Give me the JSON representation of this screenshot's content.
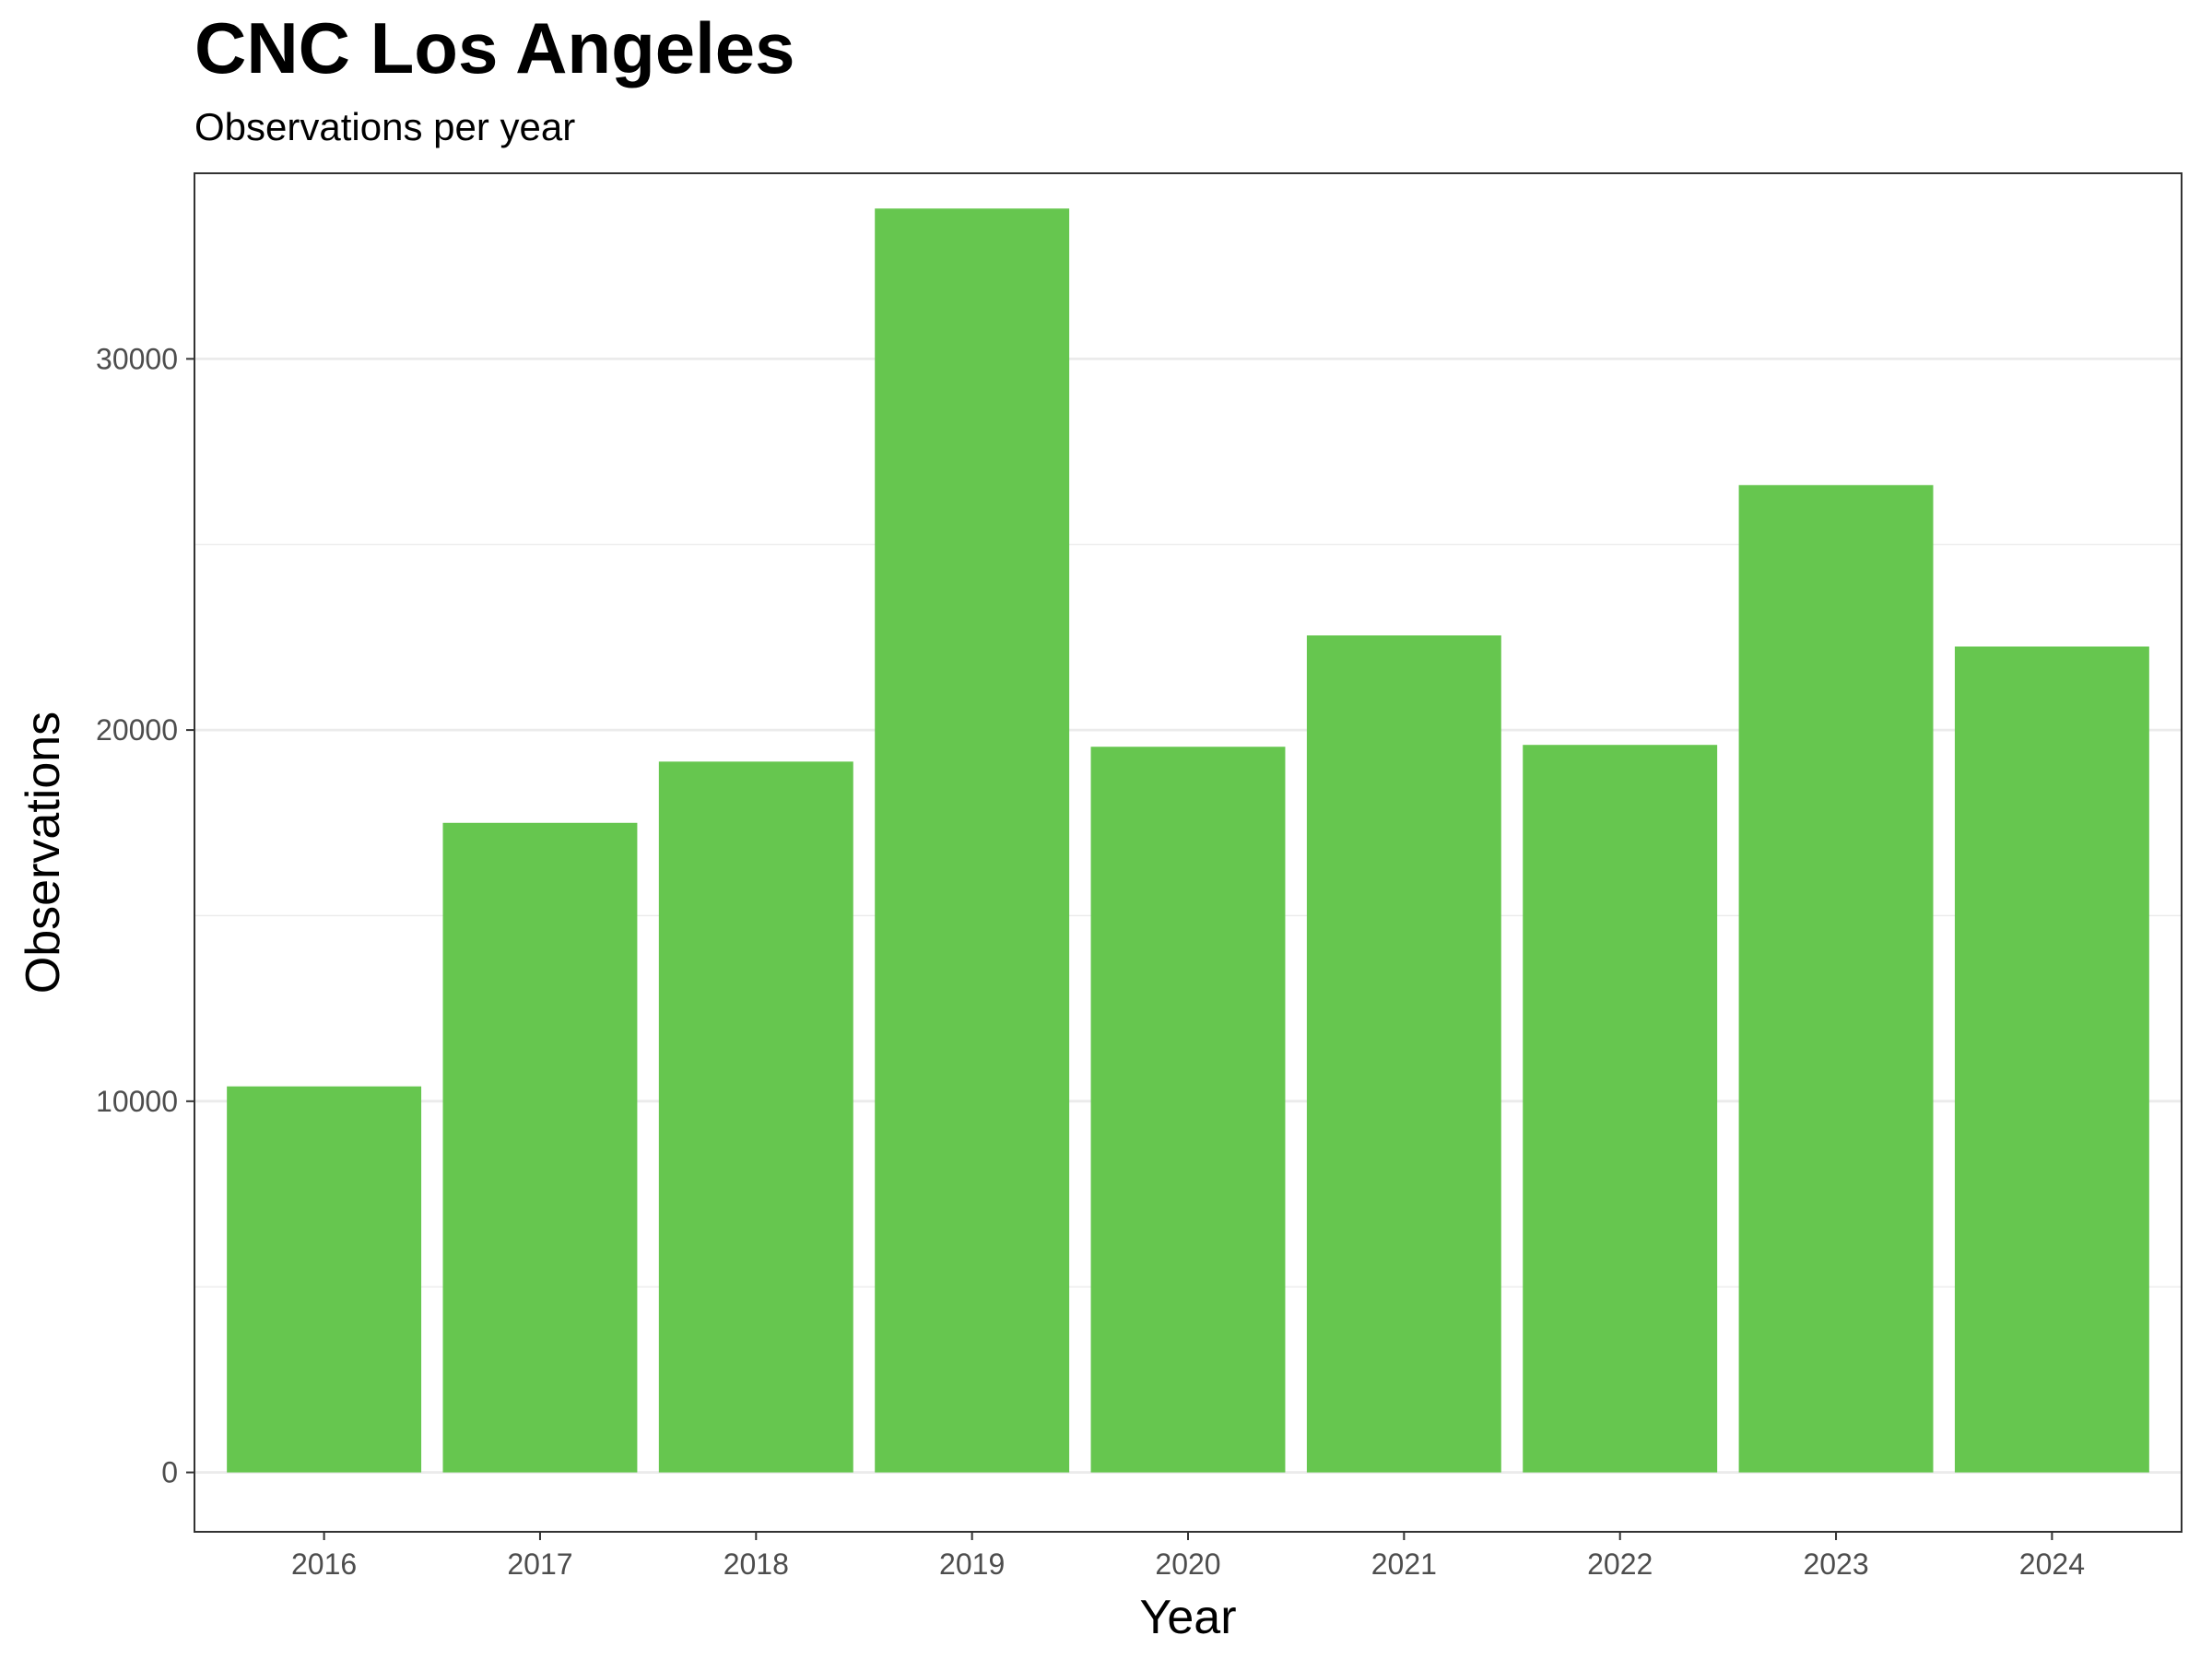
{
  "chart_data": {
    "type": "bar",
    "title": "CNC Los Angeles",
    "subtitle": "Observations per year",
    "xlabel": "Year",
    "ylabel": "Observations",
    "categories": [
      "2016",
      "2017",
      "2018",
      "2019",
      "2020",
      "2021",
      "2022",
      "2023",
      "2024"
    ],
    "values": [
      10400,
      17500,
      19150,
      34050,
      19550,
      22550,
      19600,
      26600,
      22250
    ],
    "ylim": [
      -1600,
      35000
    ],
    "y_ticks": [
      0,
      10000,
      20000,
      30000
    ],
    "y_tick_labels": [
      "0",
      "10000",
      "20000",
      "30000"
    ],
    "grid": true,
    "legend": "none",
    "bar_color": "#66c64f",
    "grid_color": "#ebebeb",
    "border_color": "#333333"
  }
}
